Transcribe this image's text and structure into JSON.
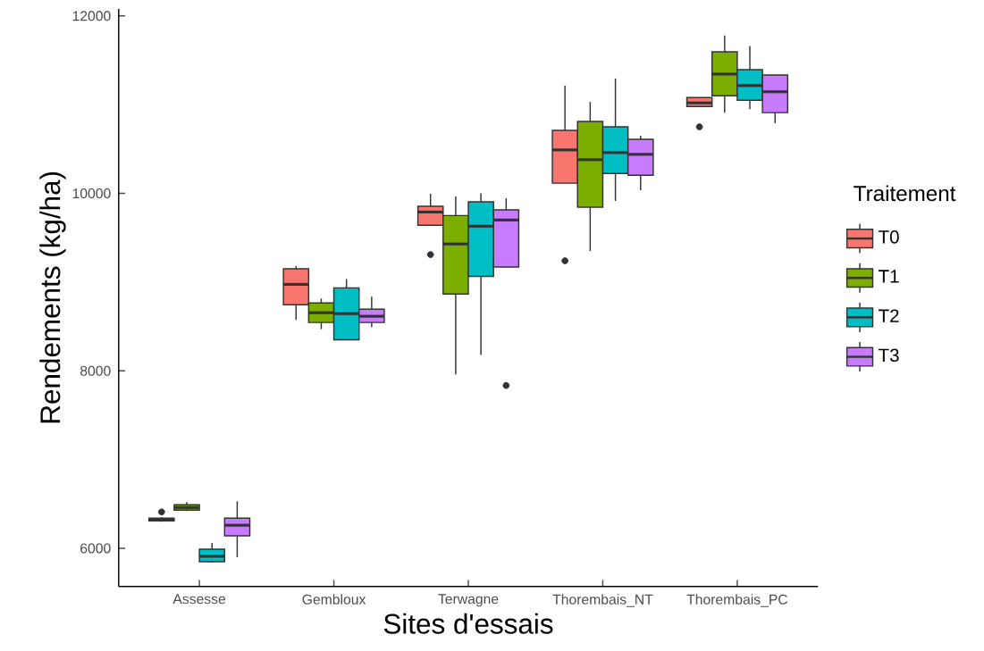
{
  "chart_data": {
    "type": "box",
    "xlabel": "Sites d'essais",
    "ylabel": "Rendements (kg/ha)",
    "legend_title": "Traitement",
    "legend": "right",
    "categories": [
      "Assesse",
      "Gembloux",
      "Terwagne",
      "Thorembais_NT",
      "Thorembais_PC"
    ],
    "ylim": [
      5570,
      12080
    ],
    "yticks": [
      6000,
      8000,
      10000,
      12000
    ],
    "grid": false,
    "series": [
      {
        "name": "T0",
        "color": "#f8766d",
        "boxes": [
          {
            "low": 6300,
            "q1": 6310,
            "median": 6320,
            "q3": 6340,
            "high": 6350,
            "outliers": [
              6410
            ]
          },
          {
            "low": 8575,
            "q1": 8745,
            "median": 8975,
            "q3": 9150,
            "high": 9180
          },
          {
            "low": 9640,
            "q1": 9640,
            "median": 9790,
            "q3": 9855,
            "high": 9995,
            "outliers": [
              9310
            ]
          },
          {
            "low": 10115,
            "q1": 10115,
            "median": 10490,
            "q3": 10710,
            "high": 11215,
            "outliers": [
              9240
            ]
          },
          {
            "low": 10980,
            "q1": 10980,
            "median": 11020,
            "q3": 11080,
            "high": 11080,
            "outliers": [
              10750
            ]
          }
        ]
      },
      {
        "name": "T1",
        "color": "#7cae00",
        "boxes": [
          {
            "low": 6420,
            "q1": 6430,
            "median": 6460,
            "q3": 6490,
            "high": 6520
          },
          {
            "low": 8470,
            "q1": 8545,
            "median": 8655,
            "q3": 8765,
            "high": 8815
          },
          {
            "low": 7960,
            "q1": 8865,
            "median": 9430,
            "q3": 9750,
            "high": 9965
          },
          {
            "low": 9350,
            "q1": 9845,
            "median": 10380,
            "q3": 10810,
            "high": 11030
          },
          {
            "low": 10910,
            "q1": 11100,
            "median": 11345,
            "q3": 11595,
            "high": 11780
          }
        ]
      },
      {
        "name": "T2",
        "color": "#00bfc4",
        "boxes": [
          {
            "low": 5840,
            "q1": 5850,
            "median": 5910,
            "q3": 5990,
            "high": 6060
          },
          {
            "low": 8350,
            "q1": 8350,
            "median": 8645,
            "q3": 8935,
            "high": 9035
          },
          {
            "low": 8180,
            "q1": 9065,
            "median": 9630,
            "q3": 9905,
            "high": 10000
          },
          {
            "low": 9915,
            "q1": 10225,
            "median": 10460,
            "q3": 10750,
            "high": 11295
          },
          {
            "low": 10950,
            "q1": 11050,
            "median": 11215,
            "q3": 11395,
            "high": 11660
          }
        ]
      },
      {
        "name": "T3",
        "color": "#c77cff",
        "boxes": [
          {
            "low": 5900,
            "q1": 6140,
            "median": 6260,
            "q3": 6340,
            "high": 6530
          },
          {
            "low": 8490,
            "q1": 8545,
            "median": 8615,
            "q3": 8695,
            "high": 8835
          },
          {
            "low": 9170,
            "q1": 9170,
            "median": 9700,
            "q3": 9815,
            "high": 9945,
            "outliers": [
              7835
            ]
          },
          {
            "low": 10035,
            "q1": 10205,
            "median": 10440,
            "q3": 10610,
            "high": 10650
          },
          {
            "low": 10790,
            "q1": 10910,
            "median": 11145,
            "q3": 11335,
            "high": 11335
          }
        ]
      }
    ]
  }
}
